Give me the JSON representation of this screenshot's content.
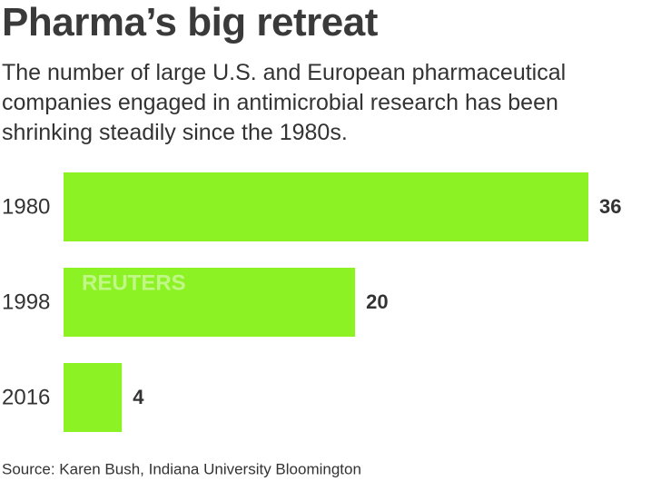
{
  "chart_data": {
    "type": "bar",
    "orientation": "horizontal",
    "title": "Pharma’s big retreat",
    "subtitle": "The number of large U.S. and European pharmaceutical companies engaged in antimicrobial research has been shrinking steadily since the 1980s.",
    "categories": [
      "1980",
      "1998",
      "2016"
    ],
    "values": [
      36,
      20,
      4
    ],
    "color": "#8cf224",
    "source": "Source: Karen Bush, Indiana University Bloomington",
    "watermark": "REUTERS"
  }
}
